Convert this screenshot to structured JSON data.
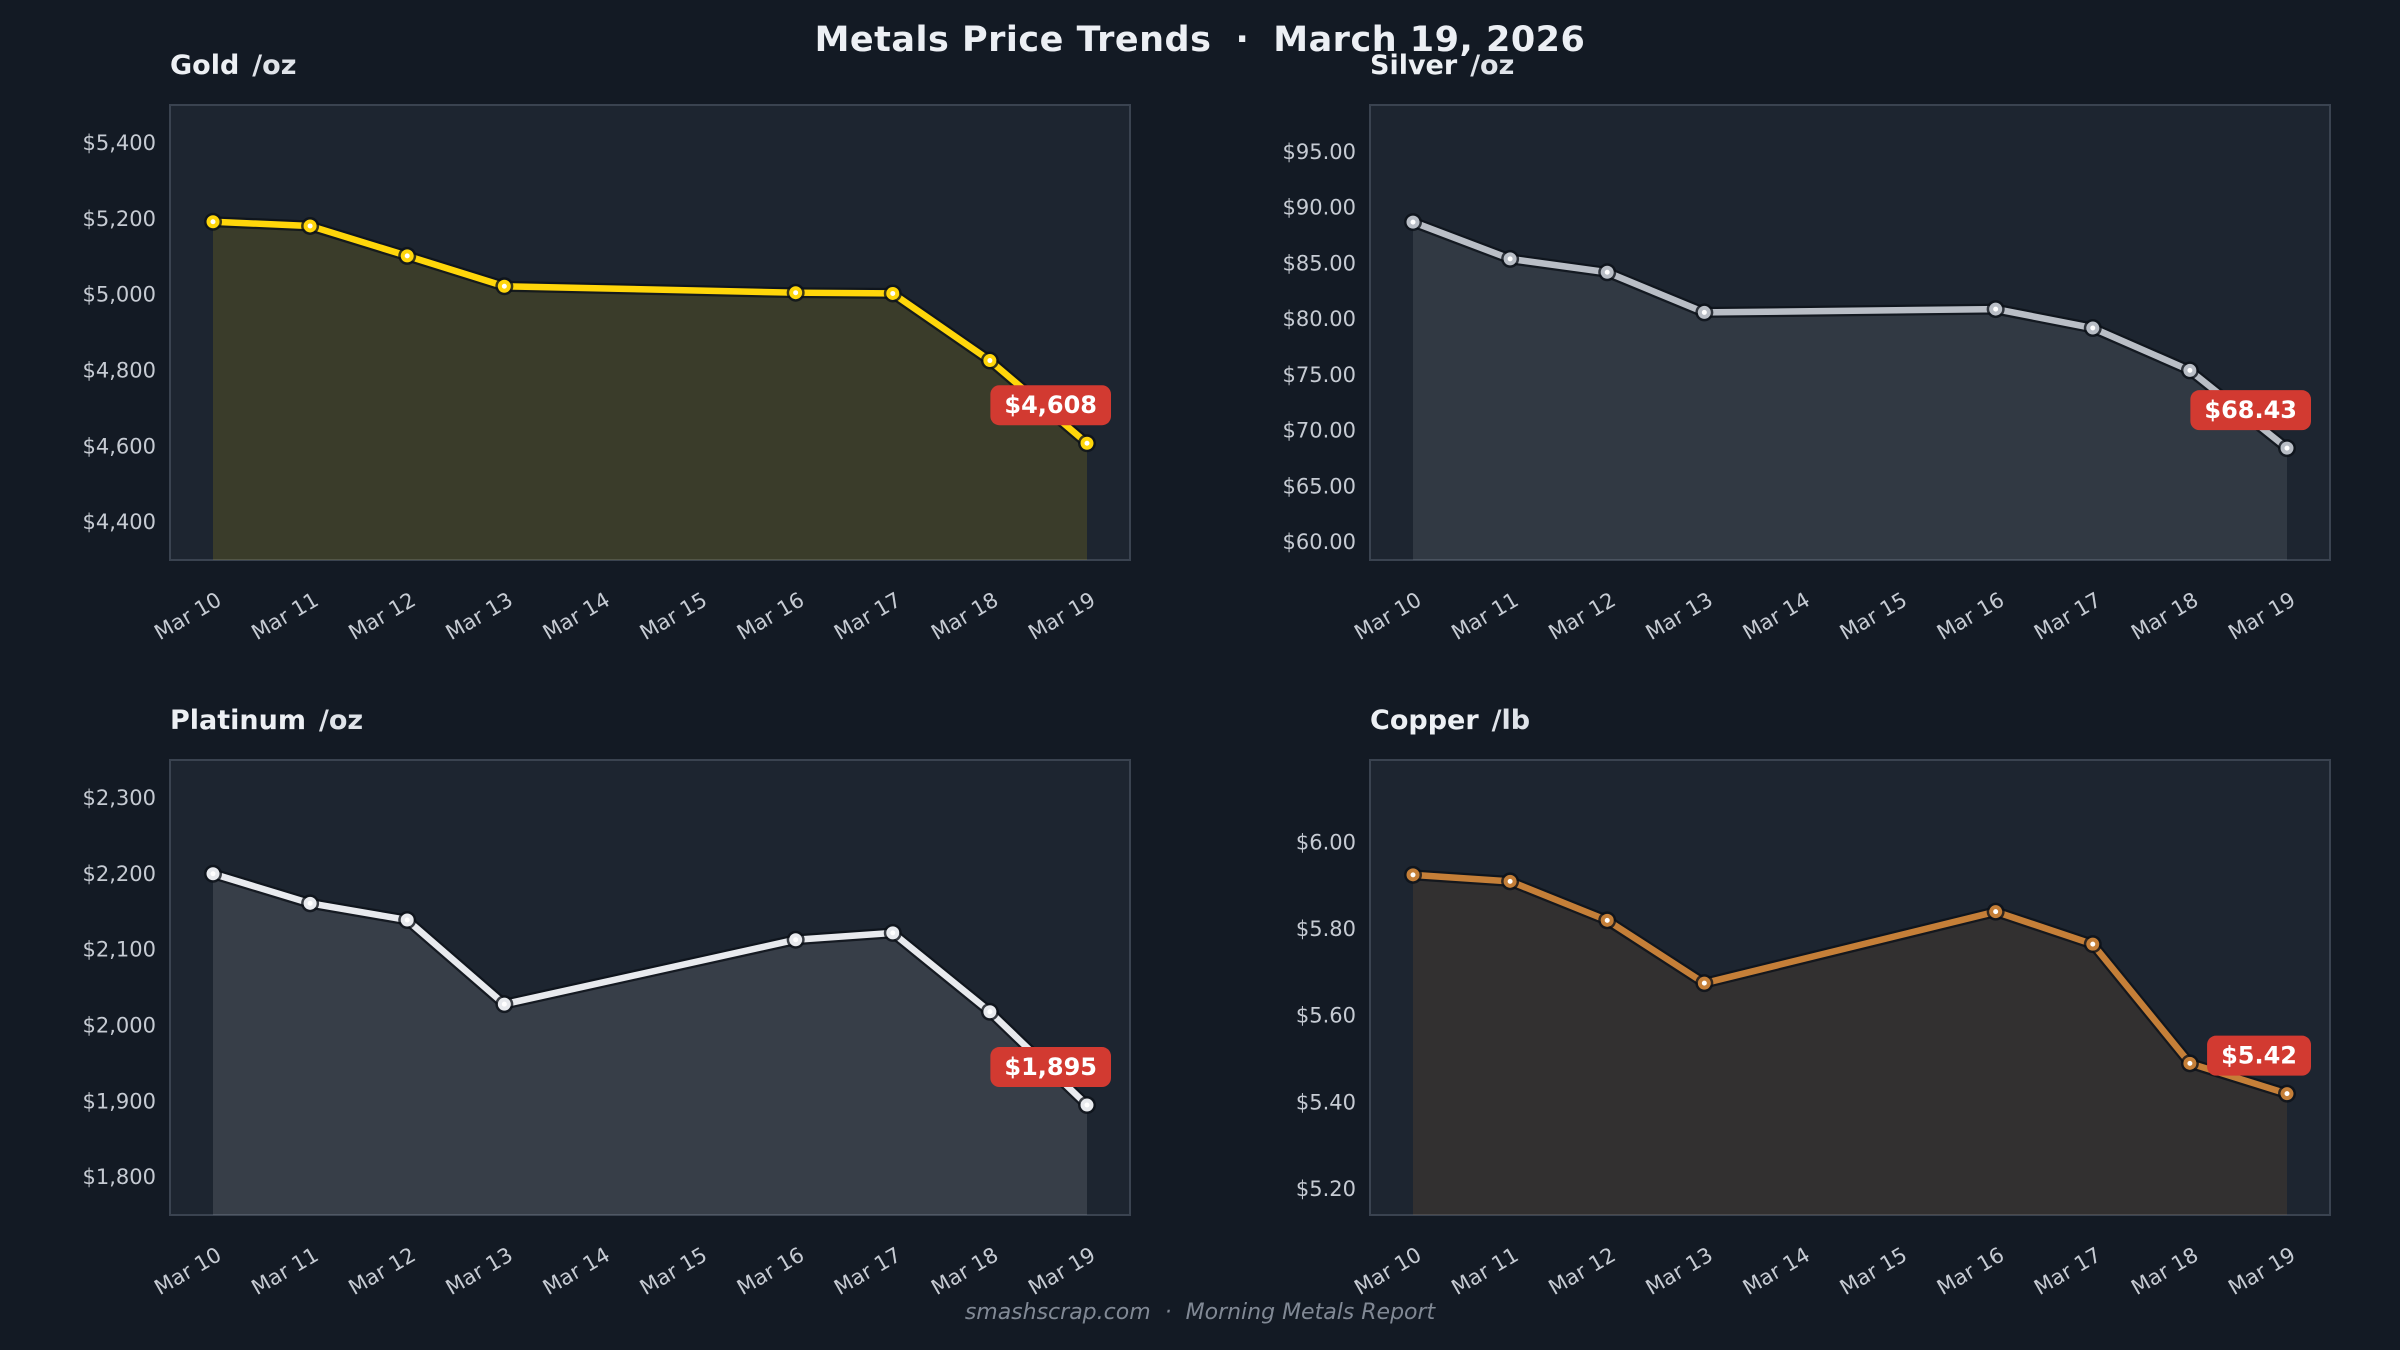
{
  "header": {
    "title": "Metals Price Trends",
    "separator": "·",
    "date": "March 19, 2026"
  },
  "footer": {
    "site": "smashscrap.com",
    "separator": "·",
    "report": "Morning Metals Report"
  },
  "colors": {
    "page_bg": "#131a24",
    "panel_bg": "#1d2530",
    "panel_border": "#3a4350",
    "tick_text": "#c6cbd3",
    "title_text": "#edf0f4",
    "badge_bg": "#d23a31",
    "badge_text": "#ffffff",
    "marker_fill": "#ffffff",
    "gold_line": "#ffd60a",
    "silver_line": "#b9bec6",
    "platinum_line": "#e8eaee",
    "copper_line": "#c57f38"
  },
  "chart_data": [
    {
      "type": "area",
      "id": "gold",
      "name": "Gold",
      "unit": "/oz",
      "title": "Gold /oz",
      "xlabel": "",
      "ylabel": "",
      "line_color": "#ffd60a",
      "categories": [
        "Mar 10",
        "Mar 11",
        "Mar 12",
        "Mar 13",
        "Mar 14",
        "Mar 15",
        "Mar 16",
        "Mar 17",
        "Mar 18",
        "Mar 19"
      ],
      "points": [
        {
          "date": "Mar 10",
          "value": 5192
        },
        {
          "date": "Mar 11",
          "value": 5181
        },
        {
          "date": "Mar 12",
          "value": 5102
        },
        {
          "date": "Mar 13",
          "value": 5022
        },
        {
          "date": "Mar 16",
          "value": 5005
        },
        {
          "date": "Mar 17",
          "value": 5003
        },
        {
          "date": "Mar 18",
          "value": 4826
        },
        {
          "date": "Mar 19",
          "value": 4608
        }
      ],
      "ylim": [
        4300,
        5500
      ],
      "yticks": [
        {
          "value": 5400,
          "label": "$5,400"
        },
        {
          "value": 5200,
          "label": "$5,200"
        },
        {
          "value": 5000,
          "label": "$5,000"
        },
        {
          "value": 4800,
          "label": "$4,800"
        },
        {
          "value": 4600,
          "label": "$4,600"
        },
        {
          "value": 4400,
          "label": "$4,400"
        }
      ],
      "last_label": "$4,608",
      "grid": false,
      "legend": "none"
    },
    {
      "type": "area",
      "id": "silver",
      "name": "Silver",
      "unit": "/oz",
      "title": "Silver /oz",
      "xlabel": "",
      "ylabel": "",
      "line_color": "#b9bec6",
      "categories": [
        "Mar 10",
        "Mar 11",
        "Mar 12",
        "Mar 13",
        "Mar 14",
        "Mar 15",
        "Mar 16",
        "Mar 17",
        "Mar 18",
        "Mar 19"
      ],
      "points": [
        {
          "date": "Mar 10",
          "value": 88.7
        },
        {
          "date": "Mar 11",
          "value": 85.4
        },
        {
          "date": "Mar 12",
          "value": 84.2
        },
        {
          "date": "Mar 13",
          "value": 80.6
        },
        {
          "date": "Mar 16",
          "value": 80.9
        },
        {
          "date": "Mar 17",
          "value": 79.2
        },
        {
          "date": "Mar 18",
          "value": 75.4
        },
        {
          "date": "Mar 19",
          "value": 68.43
        }
      ],
      "ylim": [
        58.4,
        99.2
      ],
      "yticks": [
        {
          "value": 95,
          "label": "$95.00"
        },
        {
          "value": 90,
          "label": "$90.00"
        },
        {
          "value": 85,
          "label": "$85.00"
        },
        {
          "value": 80,
          "label": "$80.00"
        },
        {
          "value": 75,
          "label": "$75.00"
        },
        {
          "value": 70,
          "label": "$70.00"
        },
        {
          "value": 65,
          "label": "$65.00"
        },
        {
          "value": 60,
          "label": "$60.00"
        }
      ],
      "last_label": "$68.43",
      "grid": false,
      "legend": "none"
    },
    {
      "type": "area",
      "id": "platinum",
      "name": "Platinum",
      "unit": "/oz",
      "title": "Platinum /oz",
      "xlabel": "",
      "ylabel": "",
      "line_color": "#e8eaee",
      "categories": [
        "Mar 10",
        "Mar 11",
        "Mar 12",
        "Mar 13",
        "Mar 14",
        "Mar 15",
        "Mar 16",
        "Mar 17",
        "Mar 18",
        "Mar 19"
      ],
      "points": [
        {
          "date": "Mar 10",
          "value": 2200
        },
        {
          "date": "Mar 11",
          "value": 2161
        },
        {
          "date": "Mar 12",
          "value": 2139
        },
        {
          "date": "Mar 13",
          "value": 2028
        },
        {
          "date": "Mar 16",
          "value": 2113
        },
        {
          "date": "Mar 17",
          "value": 2122
        },
        {
          "date": "Mar 18",
          "value": 2018
        },
        {
          "date": "Mar 19",
          "value": 1895
        }
      ],
      "ylim": [
        1750,
        2350
      ],
      "yticks": [
        {
          "value": 2300,
          "label": "$2,300"
        },
        {
          "value": 2200,
          "label": "$2,200"
        },
        {
          "value": 2100,
          "label": "$2,100"
        },
        {
          "value": 2000,
          "label": "$2,000"
        },
        {
          "value": 1900,
          "label": "$1,900"
        },
        {
          "value": 1800,
          "label": "$1,800"
        }
      ],
      "last_label": "$1,895",
      "grid": false,
      "legend": "none"
    },
    {
      "type": "area",
      "id": "copper",
      "name": "Copper",
      "unit": "/lb",
      "title": "Copper /lb",
      "xlabel": "",
      "ylabel": "",
      "line_color": "#c57f38",
      "categories": [
        "Mar 10",
        "Mar 11",
        "Mar 12",
        "Mar 13",
        "Mar 14",
        "Mar 15",
        "Mar 16",
        "Mar 17",
        "Mar 18",
        "Mar 19"
      ],
      "points": [
        {
          "date": "Mar 10",
          "value": 5.925
        },
        {
          "date": "Mar 11",
          "value": 5.91
        },
        {
          "date": "Mar 12",
          "value": 5.82
        },
        {
          "date": "Mar 13",
          "value": 5.675
        },
        {
          "date": "Mar 16",
          "value": 5.84
        },
        {
          "date": "Mar 17",
          "value": 5.765
        },
        {
          "date": "Mar 18",
          "value": 5.49
        },
        {
          "date": "Mar 19",
          "value": 5.42
        }
      ],
      "ylim": [
        5.14,
        6.19
      ],
      "yticks": [
        {
          "value": 6.0,
          "label": "$6.00"
        },
        {
          "value": 5.8,
          "label": "$5.80"
        },
        {
          "value": 5.6,
          "label": "$5.60"
        },
        {
          "value": 5.4,
          "label": "$5.40"
        },
        {
          "value": 5.2,
          "label": "$5.20"
        }
      ],
      "last_label": "$5.42",
      "grid": false,
      "legend": "none"
    }
  ]
}
